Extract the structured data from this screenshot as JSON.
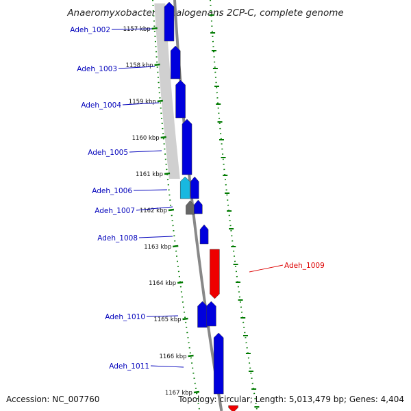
{
  "title": "Anaeromyxobacter dehalogenans 2CP-C, complete genome",
  "footer": {
    "accession": "Accession: NC_007760",
    "topology": "Topology: circular; Length: 5,013,479 bp; Genes: 4,404"
  },
  "colors": {
    "forward_gene": "#0000dd",
    "reverse_gene": "#ee0000",
    "label_forward": "#0000bb",
    "label_reverse": "#dd0000",
    "tick_green": "#007a00",
    "backbone": "#888888"
  },
  "ticks": [
    {
      "label": "1157 kbp"
    },
    {
      "label": "1158 kbp"
    },
    {
      "label": "1159 kbp"
    },
    {
      "label": "1160 kbp"
    },
    {
      "label": "1161 kbp"
    },
    {
      "label": "1162 kbp"
    },
    {
      "label": "1163 kbp"
    },
    {
      "label": "1164 kbp"
    },
    {
      "label": "1165 kbp"
    },
    {
      "label": "1166 kbp"
    },
    {
      "label": "1167 kbp"
    }
  ],
  "genes": [
    {
      "name": "Adeh_1002",
      "strand": "forward"
    },
    {
      "name": "Adeh_1003",
      "strand": "forward"
    },
    {
      "name": "Adeh_1004",
      "strand": "forward"
    },
    {
      "name": "Adeh_1005",
      "strand": "forward"
    },
    {
      "name": "Adeh_1006",
      "strand": "forward"
    },
    {
      "name": "Adeh_1007",
      "strand": "forward"
    },
    {
      "name": "Adeh_1008",
      "strand": "forward"
    },
    {
      "name": "Adeh_1009",
      "strand": "reverse"
    },
    {
      "name": "Adeh_1010",
      "strand": "forward"
    },
    {
      "name": "Adeh_1011",
      "strand": "forward"
    }
  ]
}
